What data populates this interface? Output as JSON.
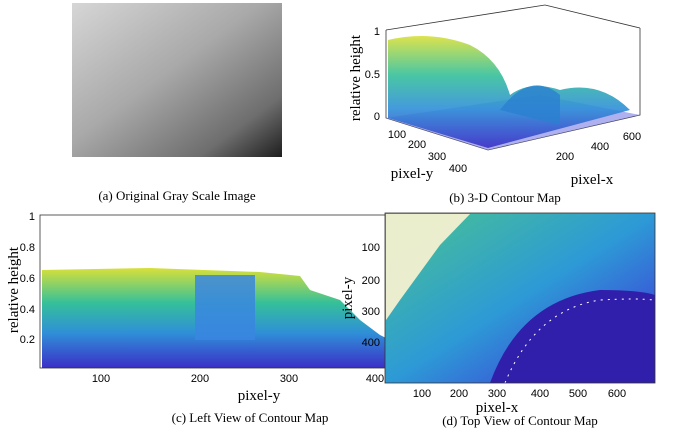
{
  "panels": [
    {
      "caption": "(a) Original Gray Scale Image"
    },
    {
      "caption": "(b) 3-D Contour Map",
      "z_label": "relative height",
      "y_label": "pixel-y",
      "x_label": "pixel-x",
      "z_ticks": [
        1,
        0.5,
        0
      ],
      "y_ticks": [
        100,
        200,
        300,
        400
      ],
      "x_ticks": [
        200,
        400,
        600
      ]
    },
    {
      "caption": "(c) Left View of Contour Map",
      "y_label": "relative height",
      "x_label": "pixel-y",
      "y_ticks": [
        1,
        0.8,
        0.6,
        0.4,
        0.2
      ],
      "x_ticks": [
        100,
        200,
        300,
        400
      ]
    },
    {
      "caption": "(d) Top View of Contour Map",
      "y_label": "pixel-y",
      "x_label": "pixel-x",
      "y_ticks": [
        100,
        200,
        300,
        400
      ],
      "x_ticks": [
        100,
        200,
        300,
        400,
        500,
        600
      ]
    }
  ]
}
